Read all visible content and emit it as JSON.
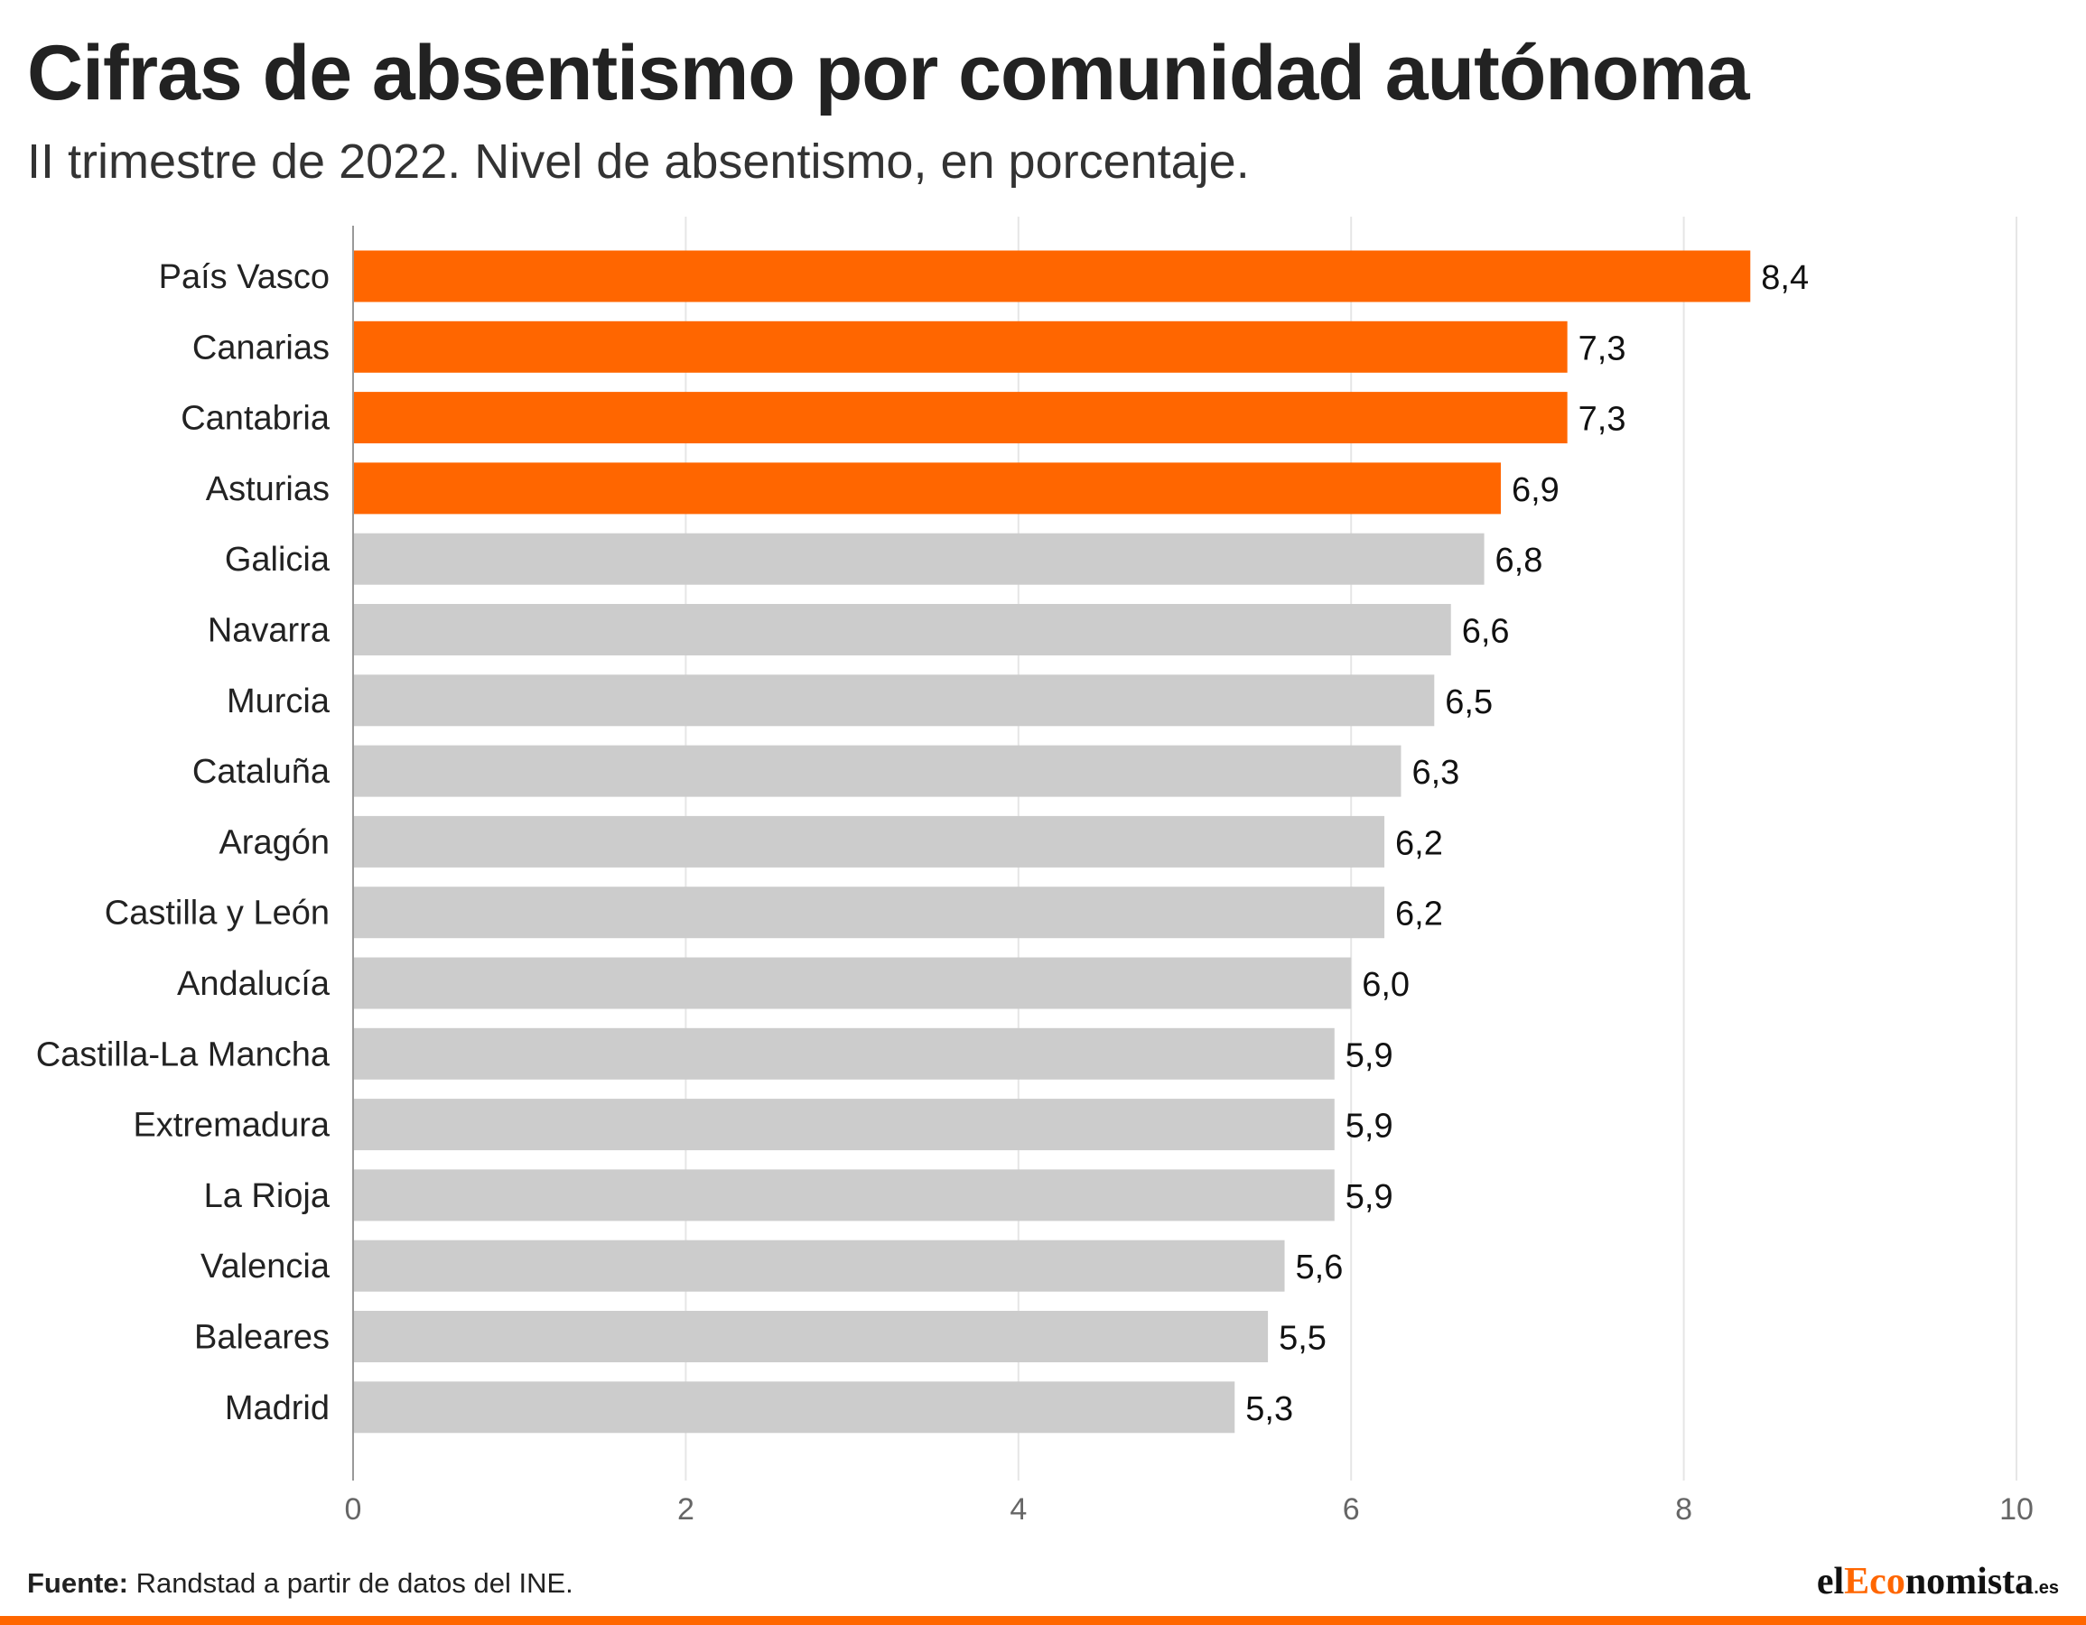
{
  "title": "Cifras de absentismo por comunidad autónoma",
  "subtitle": "II trimestre de 2022. Nivel de absentismo, en porcentaje.",
  "footer": {
    "source_label": "Fuente:",
    "source_text": "Randstad a partir de datos del INE."
  },
  "logo": {
    "part1": "el",
    "part2": "Eco",
    "part3": "nomista",
    "part4": ".es"
  },
  "colors": {
    "highlight": "#ff6600",
    "default": "#cccccc",
    "grid": "#e6e6e6",
    "axis": "#999999",
    "bottom_bar": "#ff6600"
  },
  "chart_data": {
    "type": "bar",
    "orientation": "horizontal",
    "categories": [
      "País Vasco",
      "Canarias",
      "Cantabria",
      "Asturias",
      "Galicia",
      "Navarra",
      "Murcia",
      "Cataluña",
      "Aragón",
      "Castilla y León",
      "Andalucía",
      "Castilla-La Mancha",
      "Extremadura",
      "La Rioja",
      "Valencia",
      "Baleares",
      "Madrid"
    ],
    "values": [
      8.4,
      7.3,
      7.3,
      6.9,
      6.8,
      6.6,
      6.5,
      6.3,
      6.2,
      6.2,
      6.0,
      5.9,
      5.9,
      5.9,
      5.6,
      5.5,
      5.3
    ],
    "value_labels": [
      "8,4",
      "7,3",
      "7,3",
      "6,9",
      "6,8",
      "6,6",
      "6,5",
      "6,3",
      "6,2",
      "6,2",
      "6,0",
      "5,9",
      "5,9",
      "5,9",
      "5,6",
      "5,5",
      "5,3"
    ],
    "highlighted": [
      true,
      true,
      true,
      true,
      false,
      false,
      false,
      false,
      false,
      false,
      false,
      false,
      false,
      false,
      false,
      false,
      false
    ],
    "xlim": [
      0,
      10
    ],
    "xticks": [
      0,
      2,
      4,
      6,
      8,
      10
    ],
    "xtick_labels": [
      "0",
      "2",
      "4",
      "6",
      "8",
      "10"
    ],
    "grid": true,
    "title": "Cifras de absentismo por comunidad autónoma",
    "xlabel": "",
    "ylabel": ""
  }
}
